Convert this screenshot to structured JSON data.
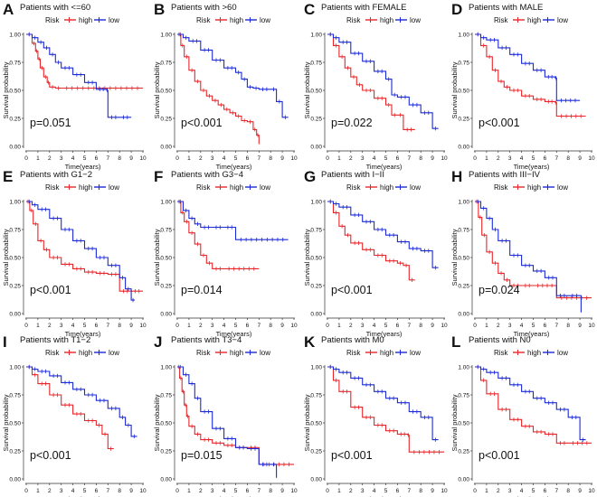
{
  "figure": {
    "legend_label": "Risk",
    "high_label": "high",
    "low_label": "low",
    "xlabel": "Time(years)",
    "ylabel": "Survival probability",
    "colors": {
      "high": "#e8262a",
      "low": "#1c2bd6"
    }
  },
  "chart_data": [
    {
      "type": "line",
      "letter": "A",
      "title": "Patients with <=60",
      "pvalue": "p=0.051",
      "xlim": [
        0,
        10
      ],
      "ylim": [
        0,
        1
      ],
      "xticks": [
        "0",
        "1",
        "2",
        "3",
        "4",
        "5",
        "6",
        "7",
        "8",
        "9",
        "10"
      ],
      "yticks": [
        "0.00",
        "0.25",
        "0.50",
        "0.75",
        "1.00"
      ],
      "series": [
        {
          "name": "high",
          "x": [
            0,
            0.5,
            0.8,
            1.0,
            1.2,
            1.5,
            1.8,
            2.0,
            2.5,
            3,
            10
          ],
          "y": [
            1,
            0.92,
            0.85,
            0.78,
            0.7,
            0.62,
            0.57,
            0.53,
            0.52,
            0.52,
            0.52
          ]
        },
        {
          "name": "low",
          "x": [
            0,
            0.5,
            1.0,
            1.5,
            2.0,
            2.5,
            3,
            4,
            5,
            6,
            6.9,
            7.0,
            8,
            9
          ],
          "y": [
            1,
            0.97,
            0.93,
            0.88,
            0.82,
            0.75,
            0.7,
            0.64,
            0.57,
            0.51,
            0.5,
            0.26,
            0.26,
            0.26
          ]
        }
      ]
    },
    {
      "type": "line",
      "letter": "B",
      "title": "Patients with >60",
      "pvalue": "p<0.001",
      "xlim": [
        0,
        10
      ],
      "ylim": [
        0,
        1
      ],
      "xticks": [
        "0",
        "1",
        "2",
        "3",
        "4",
        "5",
        "6",
        "7",
        "8",
        "9",
        "10"
      ],
      "yticks": [
        "0.00",
        "0.25",
        "0.50",
        "0.75",
        "1.00"
      ],
      "series": [
        {
          "name": "high",
          "x": [
            0,
            0.3,
            0.6,
            1.0,
            1.5,
            2.0,
            2.5,
            3.0,
            3.5,
            4.0,
            4.5,
            5.0,
            5.5,
            6.0,
            6.5,
            6.8,
            7.0
          ],
          "y": [
            1,
            0.9,
            0.8,
            0.68,
            0.58,
            0.5,
            0.45,
            0.41,
            0.37,
            0.33,
            0.3,
            0.27,
            0.23,
            0.22,
            0.15,
            0.1,
            0.02
          ]
        },
        {
          "name": "low",
          "x": [
            0,
            0.5,
            1,
            2,
            3,
            4,
            5,
            5.5,
            6,
            6.5,
            7,
            8,
            8.5,
            9,
            9.5
          ],
          "y": [
            1,
            0.97,
            0.94,
            0.86,
            0.77,
            0.7,
            0.66,
            0.6,
            0.53,
            0.52,
            0.51,
            0.51,
            0.4,
            0.26,
            0.26
          ]
        }
      ]
    },
    {
      "type": "line",
      "letter": "C",
      "title": "Patients with FEMALE",
      "pvalue": "p=0.022",
      "xlim": [
        0,
        10
      ],
      "ylim": [
        0,
        1
      ],
      "xticks": [
        "0",
        "1",
        "2",
        "3",
        "4",
        "5",
        "6",
        "7",
        "8",
        "9",
        "10"
      ],
      "yticks": [
        "0.00",
        "0.25",
        "0.50",
        "0.75",
        "1.00"
      ],
      "series": [
        {
          "name": "high",
          "x": [
            0,
            0.5,
            1,
            1.5,
            2,
            2.5,
            3,
            4,
            5,
            5.5,
            6,
            6.5,
            7.5
          ],
          "y": [
            1,
            0.9,
            0.8,
            0.7,
            0.62,
            0.55,
            0.5,
            0.43,
            0.37,
            0.28,
            0.28,
            0.15,
            0.15
          ]
        },
        {
          "name": "low",
          "x": [
            0,
            0.5,
            1,
            2,
            3,
            4,
            5,
            5.5,
            6,
            7,
            8,
            9,
            9.5
          ],
          "y": [
            1,
            0.97,
            0.93,
            0.83,
            0.76,
            0.67,
            0.6,
            0.46,
            0.44,
            0.37,
            0.3,
            0.16,
            0.16
          ]
        }
      ]
    },
    {
      "type": "line",
      "letter": "D",
      "title": "Patients with MALE",
      "pvalue": "p<0.001",
      "xlim": [
        0,
        10
      ],
      "ylim": [
        0,
        1
      ],
      "xticks": [
        "0",
        "1",
        "2",
        "3",
        "4",
        "5",
        "6",
        "7",
        "8",
        "9",
        "10"
      ],
      "yticks": [
        "0.00",
        "0.25",
        "0.50",
        "0.75",
        "1.00"
      ],
      "series": [
        {
          "name": "high",
          "x": [
            0,
            0.5,
            1,
            1.5,
            2,
            2.5,
            3,
            4,
            5,
            6,
            6.9,
            7.0,
            9.5
          ],
          "y": [
            1,
            0.9,
            0.8,
            0.68,
            0.58,
            0.53,
            0.5,
            0.45,
            0.42,
            0.4,
            0.39,
            0.27,
            0.27
          ]
        },
        {
          "name": "low",
          "x": [
            0,
            0.5,
            1,
            2,
            3,
            4,
            5,
            6,
            6.9,
            7.0,
            9
          ],
          "y": [
            1,
            0.97,
            0.95,
            0.88,
            0.82,
            0.74,
            0.68,
            0.62,
            0.61,
            0.41,
            0.41
          ]
        }
      ]
    },
    {
      "type": "line",
      "letter": "E",
      "title": "Patients with G1−2",
      "pvalue": "p<0.001",
      "xlim": [
        0,
        10
      ],
      "ylim": [
        0,
        1
      ],
      "xticks": [
        "0",
        "1",
        "2",
        "3",
        "4",
        "5",
        "6",
        "7",
        "8",
        "9",
        "10"
      ],
      "yticks": [
        "0.00",
        "0.25",
        "0.50",
        "0.75",
        "1.00"
      ],
      "series": [
        {
          "name": "high",
          "x": [
            0,
            0.3,
            0.6,
            1,
            1.5,
            2,
            3,
            4,
            5,
            6,
            7,
            8,
            9,
            10
          ],
          "y": [
            1,
            0.92,
            0.8,
            0.65,
            0.57,
            0.5,
            0.44,
            0.4,
            0.37,
            0.36,
            0.35,
            0.2,
            0.2,
            0.2
          ]
        },
        {
          "name": "low",
          "x": [
            0,
            0.5,
            1,
            2,
            3,
            4,
            5,
            6,
            7,
            8,
            8.5,
            9,
            9.3
          ],
          "y": [
            1,
            0.97,
            0.93,
            0.85,
            0.75,
            0.65,
            0.58,
            0.5,
            0.43,
            0.32,
            0.22,
            0.12,
            0.12
          ]
        }
      ]
    },
    {
      "type": "line",
      "letter": "F",
      "title": "Patients with G3−4",
      "pvalue": "p=0.014",
      "xlim": [
        0,
        10
      ],
      "ylim": [
        0,
        1
      ],
      "xticks": [
        "0",
        "1",
        "2",
        "3",
        "4",
        "5",
        "6",
        "7",
        "8",
        "9",
        "10"
      ],
      "yticks": [
        "0.00",
        "0.25",
        "0.50",
        "0.75",
        "1.00"
      ],
      "series": [
        {
          "name": "high",
          "x": [
            0,
            0.3,
            0.6,
            1,
            1.5,
            2,
            2.5,
            3,
            4,
            7
          ],
          "y": [
            1,
            0.9,
            0.82,
            0.72,
            0.62,
            0.52,
            0.45,
            0.4,
            0.4,
            0.4
          ]
        },
        {
          "name": "low",
          "x": [
            0,
            0.5,
            1,
            1.5,
            2,
            3,
            4,
            5,
            9.5
          ],
          "y": [
            1,
            0.92,
            0.85,
            0.8,
            0.77,
            0.77,
            0.77,
            0.66,
            0.66
          ]
        }
      ]
    },
    {
      "type": "line",
      "letter": "G",
      "title": "Patients with I−II",
      "pvalue": "p<0.001",
      "xlim": [
        0,
        10
      ],
      "ylim": [
        0,
        1
      ],
      "xticks": [
        "0",
        "1",
        "2",
        "3",
        "4",
        "5",
        "6",
        "7",
        "8",
        "9",
        "10"
      ],
      "yticks": [
        "0.00",
        "0.25",
        "0.50",
        "0.75",
        "1.00"
      ],
      "series": [
        {
          "name": "high",
          "x": [
            0,
            0.5,
            1,
            1.5,
            2,
            3,
            4,
            5,
            6,
            6.5,
            7,
            7.5
          ],
          "y": [
            1,
            0.9,
            0.78,
            0.7,
            0.63,
            0.57,
            0.52,
            0.47,
            0.45,
            0.43,
            0.3,
            0.3
          ]
        },
        {
          "name": "low",
          "x": [
            0,
            0.5,
            1,
            2,
            3,
            4,
            5,
            6,
            7,
            8,
            9,
            9.5
          ],
          "y": [
            1,
            0.98,
            0.95,
            0.88,
            0.82,
            0.75,
            0.7,
            0.64,
            0.58,
            0.56,
            0.41,
            0.41
          ]
        }
      ]
    },
    {
      "type": "line",
      "letter": "H",
      "title": "Patients with III−IV",
      "pvalue": "p=0.024",
      "xlim": [
        0,
        10
      ],
      "ylim": [
        0,
        1
      ],
      "xticks": [
        "0",
        "1",
        "2",
        "3",
        "4",
        "5",
        "6",
        "7",
        "8",
        "9",
        "10"
      ],
      "yticks": [
        "0.00",
        "0.25",
        "0.50",
        "0.75",
        "1.00"
      ],
      "series": [
        {
          "name": "high",
          "x": [
            0,
            0.3,
            0.6,
            1,
            1.5,
            2,
            2.5,
            3,
            4,
            5,
            7,
            10
          ],
          "y": [
            1,
            0.86,
            0.7,
            0.55,
            0.45,
            0.36,
            0.3,
            0.25,
            0.25,
            0.25,
            0.14,
            0.14
          ]
        },
        {
          "name": "low",
          "x": [
            0,
            0.5,
            1,
            1.5,
            2,
            3,
            4,
            5,
            6,
            7,
            8,
            9.1
          ],
          "y": [
            1,
            0.94,
            0.85,
            0.75,
            0.65,
            0.52,
            0.43,
            0.38,
            0.32,
            0.16,
            0.16,
            0.01
          ]
        }
      ]
    },
    {
      "type": "line",
      "letter": "I",
      "title": "Patients with T1−2",
      "pvalue": "p<0.001",
      "xlim": [
        0,
        10
      ],
      "ylim": [
        0,
        1
      ],
      "xticks": [
        "0",
        "1",
        "2",
        "3",
        "4",
        "5",
        "6",
        "7",
        "8",
        "9",
        "10"
      ],
      "yticks": [
        "0.00",
        "0.25",
        "0.50",
        "0.75",
        "1.00"
      ],
      "series": [
        {
          "name": "high",
          "x": [
            0,
            0.5,
            1,
            2,
            3,
            4,
            5,
            6,
            6.5,
            7,
            7.5
          ],
          "y": [
            1,
            0.93,
            0.85,
            0.75,
            0.66,
            0.58,
            0.52,
            0.48,
            0.4,
            0.27,
            0.27
          ]
        },
        {
          "name": "low",
          "x": [
            0,
            0.5,
            1,
            2,
            3,
            4,
            5,
            6,
            7,
            8,
            8.5,
            9,
            9.5
          ],
          "y": [
            1,
            0.98,
            0.96,
            0.92,
            0.86,
            0.8,
            0.75,
            0.7,
            0.63,
            0.55,
            0.48,
            0.38,
            0.38
          ]
        }
      ]
    },
    {
      "type": "line",
      "letter": "J",
      "title": "Patients with T3−4",
      "pvalue": "p=0.015",
      "xlim": [
        0,
        10
      ],
      "ylim": [
        0,
        1
      ],
      "xticks": [
        "0",
        "1",
        "2",
        "3",
        "4",
        "5",
        "6",
        "7",
        "8",
        "9",
        "10"
      ],
      "yticks": [
        "0.00",
        "0.25",
        "0.50",
        "0.75",
        "1.00"
      ],
      "series": [
        {
          "name": "high",
          "x": [
            0,
            0.2,
            0.4,
            0.6,
            0.8,
            1,
            1.5,
            2,
            3,
            4,
            5,
            6,
            7,
            10
          ],
          "y": [
            1,
            0.9,
            0.78,
            0.66,
            0.56,
            0.47,
            0.4,
            0.35,
            0.32,
            0.3,
            0.28,
            0.28,
            0.13,
            0.13
          ]
        },
        {
          "name": "low",
          "x": [
            0,
            0.5,
            1,
            1.5,
            2,
            3,
            4,
            5,
            6,
            7,
            8,
            8.5
          ],
          "y": [
            1,
            0.93,
            0.85,
            0.72,
            0.6,
            0.45,
            0.36,
            0.28,
            0.27,
            0.13,
            0.13,
            0.01
          ]
        }
      ]
    },
    {
      "type": "line",
      "letter": "K",
      "title": "Patients with M0",
      "pvalue": "p<0.001",
      "xlim": [
        0,
        10
      ],
      "ylim": [
        0,
        1
      ],
      "xticks": [
        "0",
        "1",
        "2",
        "3",
        "4",
        "5",
        "6",
        "7",
        "8",
        "9",
        "10"
      ],
      "yticks": [
        "0.00",
        "0.25",
        "0.50",
        "0.75",
        "1.00"
      ],
      "series": [
        {
          "name": "high",
          "x": [
            0,
            0.5,
            1,
            2,
            3,
            4,
            5,
            6,
            6.9,
            7.0,
            10
          ],
          "y": [
            1,
            0.88,
            0.78,
            0.64,
            0.55,
            0.48,
            0.43,
            0.4,
            0.39,
            0.24,
            0.24
          ]
        },
        {
          "name": "low",
          "x": [
            0,
            0.5,
            1,
            2,
            3,
            4,
            5,
            6,
            7,
            8,
            9,
            9.5
          ],
          "y": [
            1,
            0.98,
            0.95,
            0.9,
            0.84,
            0.78,
            0.72,
            0.68,
            0.6,
            0.55,
            0.35,
            0.35
          ]
        }
      ]
    },
    {
      "type": "line",
      "letter": "L",
      "title": "Patients with N0",
      "pvalue": "p<0.001",
      "xlim": [
        0,
        10
      ],
      "ylim": [
        0,
        1
      ],
      "xticks": [
        "0",
        "1",
        "2",
        "3",
        "4",
        "5",
        "6",
        "7",
        "8",
        "9",
        "10"
      ],
      "yticks": [
        "0.00",
        "0.25",
        "0.50",
        "0.75",
        "1.00"
      ],
      "series": [
        {
          "name": "high",
          "x": [
            0,
            0.5,
            1,
            2,
            3,
            4,
            5,
            6,
            7,
            8,
            10
          ],
          "y": [
            1,
            0.88,
            0.76,
            0.62,
            0.53,
            0.47,
            0.42,
            0.4,
            0.32,
            0.32,
            0.32
          ]
        },
        {
          "name": "low",
          "x": [
            0,
            0.5,
            1,
            2,
            3,
            4,
            5,
            6,
            7,
            8,
            9,
            9.5
          ],
          "y": [
            1,
            0.98,
            0.95,
            0.9,
            0.84,
            0.78,
            0.72,
            0.68,
            0.62,
            0.55,
            0.35,
            0.35
          ]
        }
      ]
    }
  ]
}
